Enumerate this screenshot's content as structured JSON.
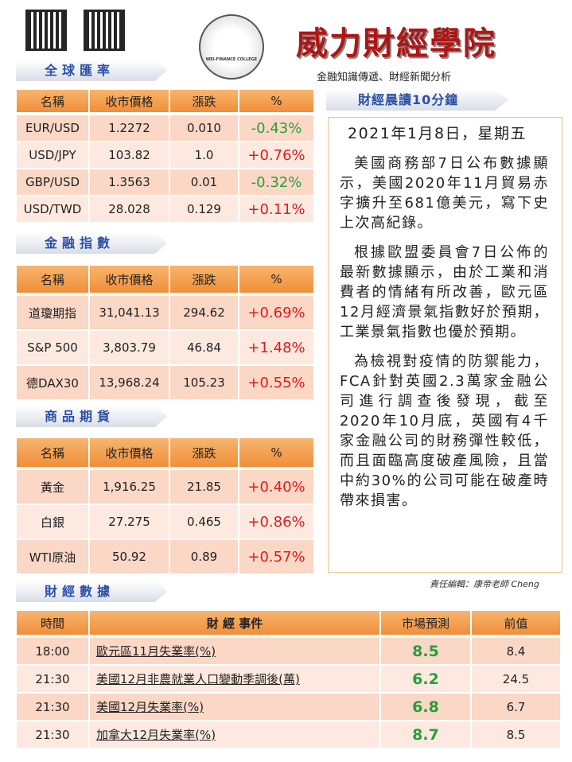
{
  "header": {
    "title": "威力財經學院",
    "subtitle": "金融知識傳遞、財經新聞分析",
    "logo_text": "WEI-FINANCE COLLEGE"
  },
  "fx": {
    "title": "全球匯率",
    "columns": [
      "名稱",
      "收市價格",
      "漲跌",
      "%"
    ],
    "rows": [
      [
        "EUR/USD",
        "1.2272",
        "0.010",
        "-0.43%"
      ],
      [
        "USD/JPY",
        "103.82",
        "1.0",
        "+0.76%"
      ],
      [
        "GBP/USD",
        "1.3563",
        "0.01",
        "-0.32%"
      ],
      [
        "USD/TWD",
        "28.028",
        "0.129",
        "+0.11%"
      ]
    ]
  },
  "indices": {
    "title": "金融指數",
    "columns": [
      "名稱",
      "收市價格",
      "漲跌",
      "%"
    ],
    "rows": [
      [
        "道瓊期指",
        "31,041.13",
        "294.62",
        "+0.69%"
      ],
      [
        "S&P 500",
        "3,803.79",
        "46.84",
        "+1.48%"
      ],
      [
        "德DAX30",
        "13,968.24",
        "105.23",
        "+0.55%"
      ]
    ]
  },
  "commodities": {
    "title": "商品期貨",
    "columns": [
      "名稱",
      "收市價格",
      "漲跌",
      "%"
    ],
    "rows": [
      [
        "黃金",
        "1,916.25",
        "21.85",
        "+0.40%"
      ],
      [
        "白銀",
        "27.275",
        "0.465",
        "+0.86%"
      ],
      [
        "WTI原油",
        "50.92",
        "0.89",
        "+0.57%"
      ]
    ]
  },
  "article": {
    "title": "財經晨讀10分鐘",
    "date": "2021年1月8日，星期五",
    "paragraphs": [
      "美國商務部7日公布數據顯示，美國2020年11月貿易赤字擴升至681億美元，寫下史上次高紀錄。",
      "根據歐盟委員會7日公佈的最新數據顯示，由於工業和消費者的情緒有所改善，歐元區12月經濟景氣指數好於預期，工業景氣指數也優於預期。",
      "為檢視對疫情的防禦能力，FCA針對英國2.3萬家金融公司進行調查後發現，截至2020年10月底，英國有4千家金融公司的財務彈性較低，而且面臨高度破產風險，且當中約30%的公司可能在破產時帶來損害。"
    ],
    "editor": "責任編輯：康帝老師 Cheng"
  },
  "calendar": {
    "title": "財經數據",
    "columns": [
      "時間",
      "財 經 事件",
      "市場預測",
      "前值"
    ],
    "rows": [
      [
        "18:00",
        "歐元區11月失業率(%)",
        "8.5",
        "8.4"
      ],
      [
        "21:30",
        "美國12月非農就業人口變動季調後(萬)",
        "6.2",
        "24.5"
      ],
      [
        "21:30",
        "美國12月失業率(%)",
        "6.8",
        "6.7"
      ],
      [
        "21:30",
        "加拿大12月失業率(%)",
        "8.7",
        "8.5"
      ]
    ]
  }
}
